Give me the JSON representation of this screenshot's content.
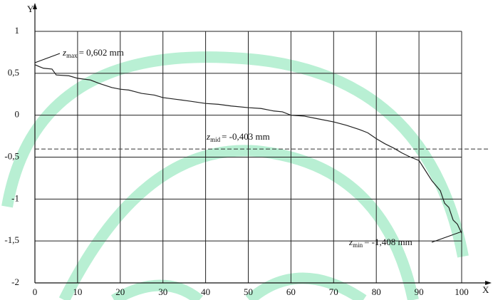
{
  "chart_data": {
    "type": "line",
    "x_label": "X",
    "y_label": "Y",
    "xlim": [
      0,
      100
    ],
    "ylim": [
      -2,
      1
    ],
    "xticks": [
      0,
      10,
      20,
      30,
      40,
      50,
      60,
      70,
      80,
      90,
      100
    ],
    "yticks": [
      1,
      {
        "value": 0.5,
        "label": "0,5"
      },
      0,
      {
        "value": -0.5,
        "label": "-0,5"
      },
      -1,
      {
        "value": -1.5,
        "label": "-1,5"
      },
      -2
    ],
    "grid": true,
    "series": [
      {
        "color": "#222222",
        "x": [
          0,
          1,
          2,
          4,
          5,
          8,
          10,
          13,
          15,
          18,
          20,
          22,
          25,
          28,
          30,
          33,
          36,
          40,
          43,
          46,
          50,
          53,
          56,
          58,
          60,
          63,
          66,
          70,
          73,
          76,
          78,
          80,
          82,
          84,
          86,
          88,
          90,
          91,
          93,
          95,
          96,
          97,
          98,
          99,
          100
        ],
        "values": [
          0.602,
          0.58,
          0.56,
          0.55,
          0.48,
          0.47,
          0.44,
          0.42,
          0.38,
          0.33,
          0.31,
          0.3,
          0.26,
          0.24,
          0.21,
          0.19,
          0.17,
          0.14,
          0.13,
          0.11,
          0.09,
          0.08,
          0.05,
          0.04,
          0.0,
          -0.01,
          -0.04,
          -0.08,
          -0.12,
          -0.17,
          -0.21,
          -0.28,
          -0.34,
          -0.39,
          -0.45,
          -0.5,
          -0.54,
          -0.62,
          -0.78,
          -0.9,
          -1.05,
          -1.1,
          -1.25,
          -1.3,
          -1.408
        ]
      }
    ],
    "annotations": [
      {
        "symbol": "z",
        "subscript": "max",
        "text": "= 0,602 mm"
      },
      {
        "symbol": "z",
        "subscript": "min",
        "text": "= -1,408 mm"
      }
    ],
    "reference_lines": [
      {
        "value": -0.403,
        "symbol": "z",
        "subscript": "mid",
        "text": "= -0,403 mm"
      }
    ]
  }
}
